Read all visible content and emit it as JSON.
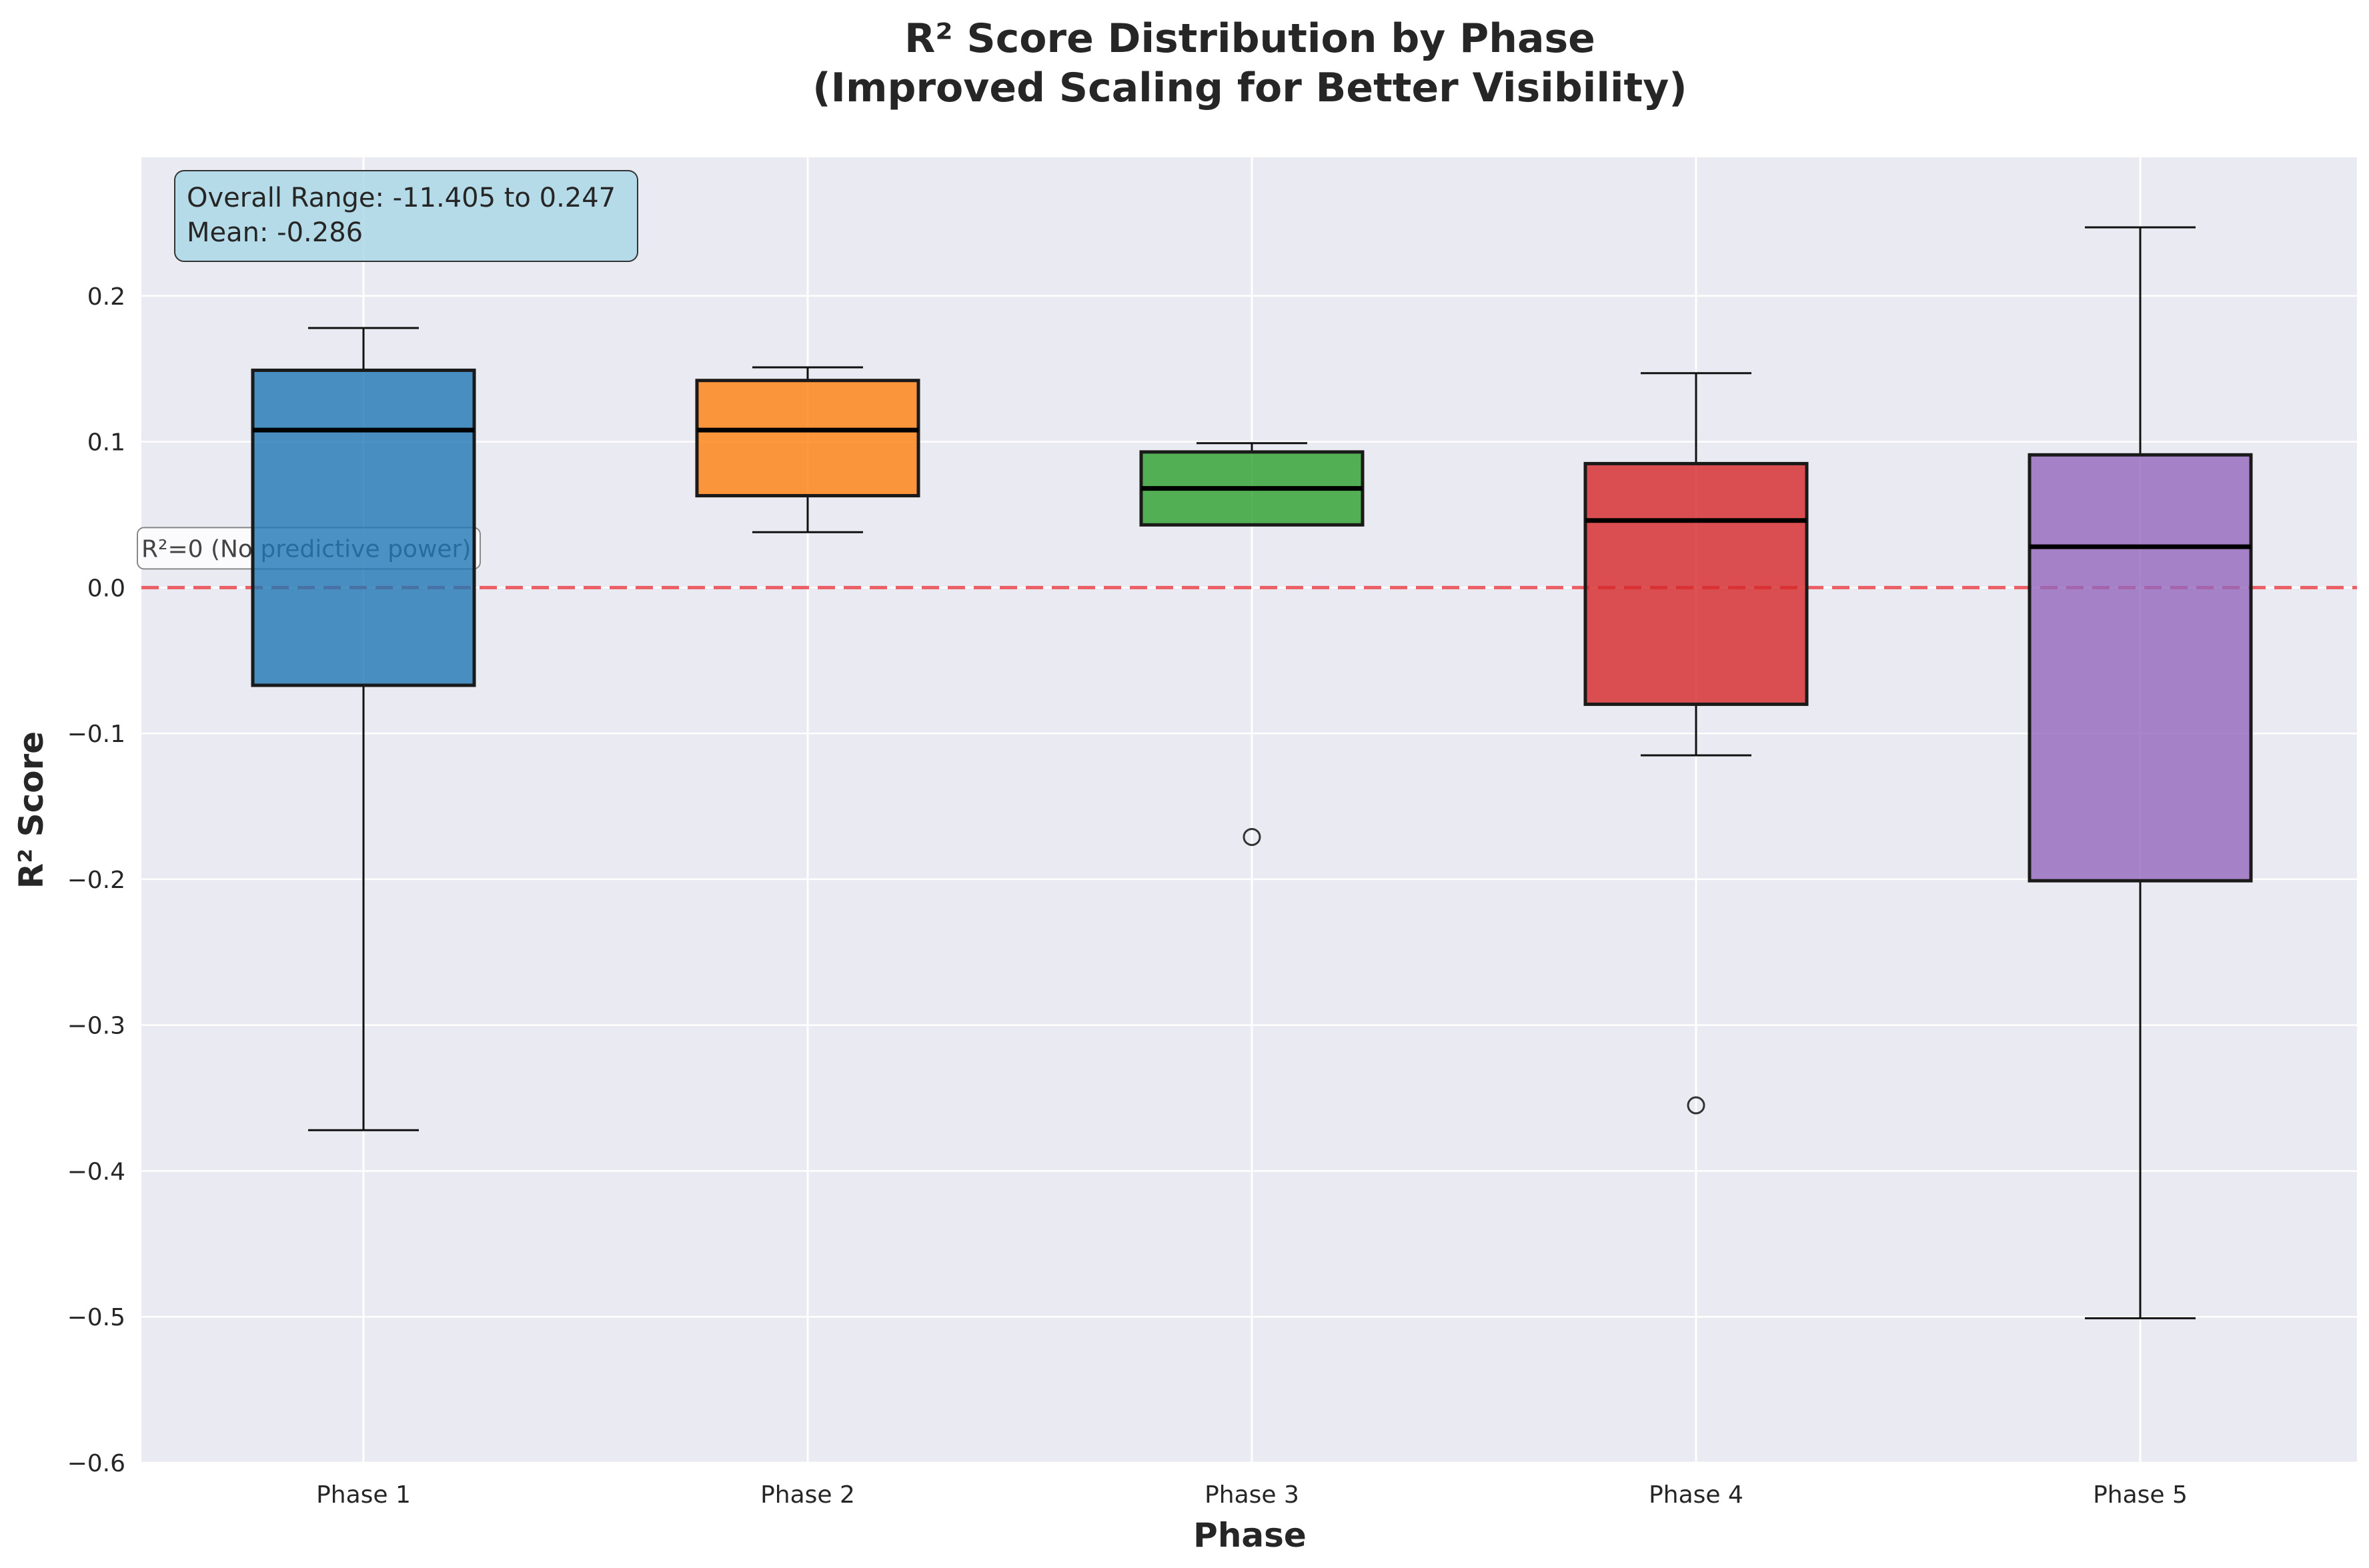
{
  "chart_data": {
    "type": "box",
    "title_line1": "R² Score Distribution by Phase",
    "title_line2": "(Improved Scaling for Better Visibility)",
    "xlabel": "Phase",
    "ylabel": "R² Score",
    "ylim": [
      -0.6,
      0.295
    ],
    "yticks": [
      -0.6,
      -0.5,
      -0.4,
      -0.3,
      -0.2,
      -0.1,
      0.0,
      0.1,
      0.2
    ],
    "ytick_labels": [
      "−0.6",
      "−0.5",
      "−0.4",
      "−0.3",
      "−0.2",
      "−0.1",
      "0.0",
      "0.1",
      "0.2"
    ],
    "grid": true,
    "categories": [
      "Phase 1",
      "Phase 2",
      "Phase 3",
      "Phase 4",
      "Phase 5"
    ],
    "boxes": [
      {
        "category": "Phase 1",
        "whisker_low": -0.372,
        "q1": -0.067,
        "median": 0.108,
        "q3": 0.149,
        "whisker_high": 0.178,
        "outliers": [],
        "color": "#1f77b4"
      },
      {
        "category": "Phase 2",
        "whisker_low": 0.038,
        "q1": 0.063,
        "median": 0.108,
        "q3": 0.142,
        "whisker_high": 0.151,
        "outliers": [],
        "color": "#ff7f0e"
      },
      {
        "category": "Phase 3",
        "whisker_low": 0.043,
        "q1": 0.043,
        "median": 0.068,
        "q3": 0.093,
        "whisker_high": 0.099,
        "outliers": [
          -0.171
        ],
        "color": "#2ca02c"
      },
      {
        "category": "Phase 4",
        "whisker_low": -0.115,
        "q1": -0.08,
        "median": 0.046,
        "q3": 0.085,
        "whisker_high": 0.147,
        "outliers": [
          -0.355
        ],
        "color": "#d62728"
      },
      {
        "category": "Phase 5",
        "whisker_low": -0.501,
        "q1": -0.201,
        "median": 0.028,
        "q3": 0.091,
        "whisker_high": 0.247,
        "outliers": [],
        "color": "#9467bd"
      }
    ],
    "reference_line": {
      "y": 0.0,
      "label": "R²=0 (No predictive power)",
      "color": "#e8434a"
    },
    "info_box": {
      "line1": "Overall Range: -11.405 to 0.247",
      "line2": "Mean: -0.286"
    }
  }
}
